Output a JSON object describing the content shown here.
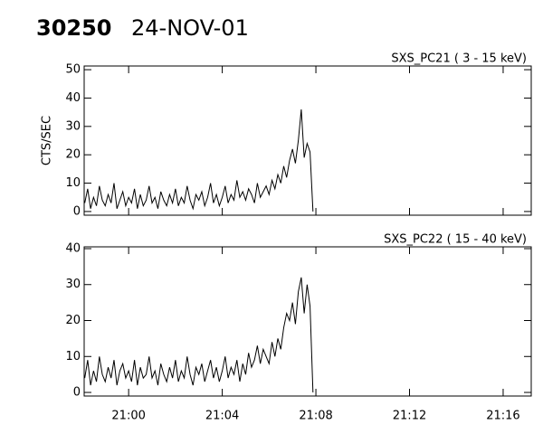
{
  "header": {
    "run": "30250",
    "date": "24-NOV-01"
  },
  "chart_data": [
    {
      "type": "line",
      "title": "SXS_PC21  (  3 - 15 keV)",
      "ylabel": "CTS/SEC",
      "x": [
        1258.125,
        1258.25,
        1258.375,
        1258.5,
        1258.625,
        1258.75,
        1258.875,
        1259,
        1259.125,
        1259.25,
        1259.375,
        1259.5,
        1259.625,
        1259.75,
        1259.875,
        1260,
        1260.125,
        1260.25,
        1260.375,
        1260.5,
        1260.625,
        1260.75,
        1260.875,
        1261,
        1261.125,
        1261.25,
        1261.375,
        1261.5,
        1261.625,
        1261.75,
        1261.875,
        1262,
        1262.125,
        1262.25,
        1262.375,
        1262.5,
        1262.625,
        1262.75,
        1262.875,
        1263,
        1263.125,
        1263.25,
        1263.375,
        1263.5,
        1263.625,
        1263.75,
        1263.875,
        1264,
        1264.125,
        1264.25,
        1264.375,
        1264.5,
        1264.625,
        1264.75,
        1264.875,
        1265,
        1265.125,
        1265.25,
        1265.375,
        1265.5,
        1265.625,
        1265.75,
        1265.875,
        1266,
        1266.125,
        1266.25,
        1266.375,
        1266.5,
        1266.625,
        1266.75,
        1266.875,
        1267,
        1267.125,
        1267.25,
        1267.375,
        1267.5,
        1267.625,
        1267.75,
        1267.875
      ],
      "series": [
        {
          "color": "#000000",
          "values": [
            3,
            8,
            1,
            5,
            2,
            9,
            4,
            2,
            6,
            3,
            10,
            1,
            4,
            7,
            2,
            5,
            3,
            8,
            1,
            6,
            2,
            4,
            9,
            3,
            5,
            1,
            7,
            4,
            2,
            6,
            3,
            8,
            2,
            5,
            3,
            9,
            4,
            1,
            6,
            4,
            7,
            2,
            5,
            10,
            3,
            6,
            2,
            5,
            9,
            3,
            6,
            4,
            11,
            5,
            7,
            4,
            8,
            6,
            3,
            10,
            5,
            7,
            9,
            6,
            11,
            8,
            13,
            10,
            16,
            12,
            18,
            22,
            17,
            25,
            36,
            19,
            24,
            21,
            0
          ]
        }
      ],
      "xlim": [
        1258.1,
        1277.2
      ],
      "xticks": [
        1260,
        1264,
        1268,
        1272,
        1276
      ],
      "ylim": [
        -1.3,
        51.3
      ],
      "yticks": [
        0,
        10,
        20,
        30,
        40,
        50
      ]
    },
    {
      "type": "line",
      "title": "SXS_PC22  ( 15 - 40 keV)",
      "x": [
        1258.125,
        1258.25,
        1258.375,
        1258.5,
        1258.625,
        1258.75,
        1258.875,
        1259,
        1259.125,
        1259.25,
        1259.375,
        1259.5,
        1259.625,
        1259.75,
        1259.875,
        1260,
        1260.125,
        1260.25,
        1260.375,
        1260.5,
        1260.625,
        1260.75,
        1260.875,
        1261,
        1261.125,
        1261.25,
        1261.375,
        1261.5,
        1261.625,
        1261.75,
        1261.875,
        1262,
        1262.125,
        1262.25,
        1262.375,
        1262.5,
        1262.625,
        1262.75,
        1262.875,
        1263,
        1263.125,
        1263.25,
        1263.375,
        1263.5,
        1263.625,
        1263.75,
        1263.875,
        1264,
        1264.125,
        1264.25,
        1264.375,
        1264.5,
        1264.625,
        1264.75,
        1264.875,
        1265,
        1265.125,
        1265.25,
        1265.375,
        1265.5,
        1265.625,
        1265.75,
        1265.875,
        1266,
        1266.125,
        1266.25,
        1266.375,
        1266.5,
        1266.625,
        1266.75,
        1266.875,
        1267,
        1267.125,
        1267.25,
        1267.375,
        1267.5,
        1267.625,
        1267.75,
        1267.875
      ],
      "series": [
        {
          "color": "#000000",
          "values": [
            4,
            9,
            2,
            6,
            3,
            10,
            5,
            3,
            7,
            4,
            9,
            2,
            6,
            8,
            4,
            6,
            3,
            9,
            2,
            7,
            4,
            5,
            10,
            4,
            6,
            2,
            8,
            5,
            3,
            7,
            4,
            9,
            3,
            6,
            4,
            10,
            5,
            2,
            7,
            5,
            8,
            3,
            6,
            9,
            4,
            7,
            3,
            6,
            10,
            4,
            7,
            5,
            9,
            3,
            8,
            5,
            11,
            7,
            9,
            13,
            8,
            12,
            10,
            8,
            14,
            10,
            15,
            12,
            18,
            22,
            20,
            25,
            19,
            28,
            32,
            22,
            30,
            24,
            0
          ]
        }
      ],
      "xlim": [
        1258.1,
        1277.2
      ],
      "xticks": [
        {
          "value": 1260,
          "label": "21:00"
        },
        {
          "value": 1264,
          "label": "21:04"
        },
        {
          "value": 1268,
          "label": "21:08"
        },
        {
          "value": 1272,
          "label": "21:12"
        },
        {
          "value": 1276,
          "label": "21:16"
        }
      ],
      "ylim": [
        -1,
        40.5
      ],
      "yticks": [
        0,
        10,
        20,
        30,
        40
      ]
    }
  ]
}
